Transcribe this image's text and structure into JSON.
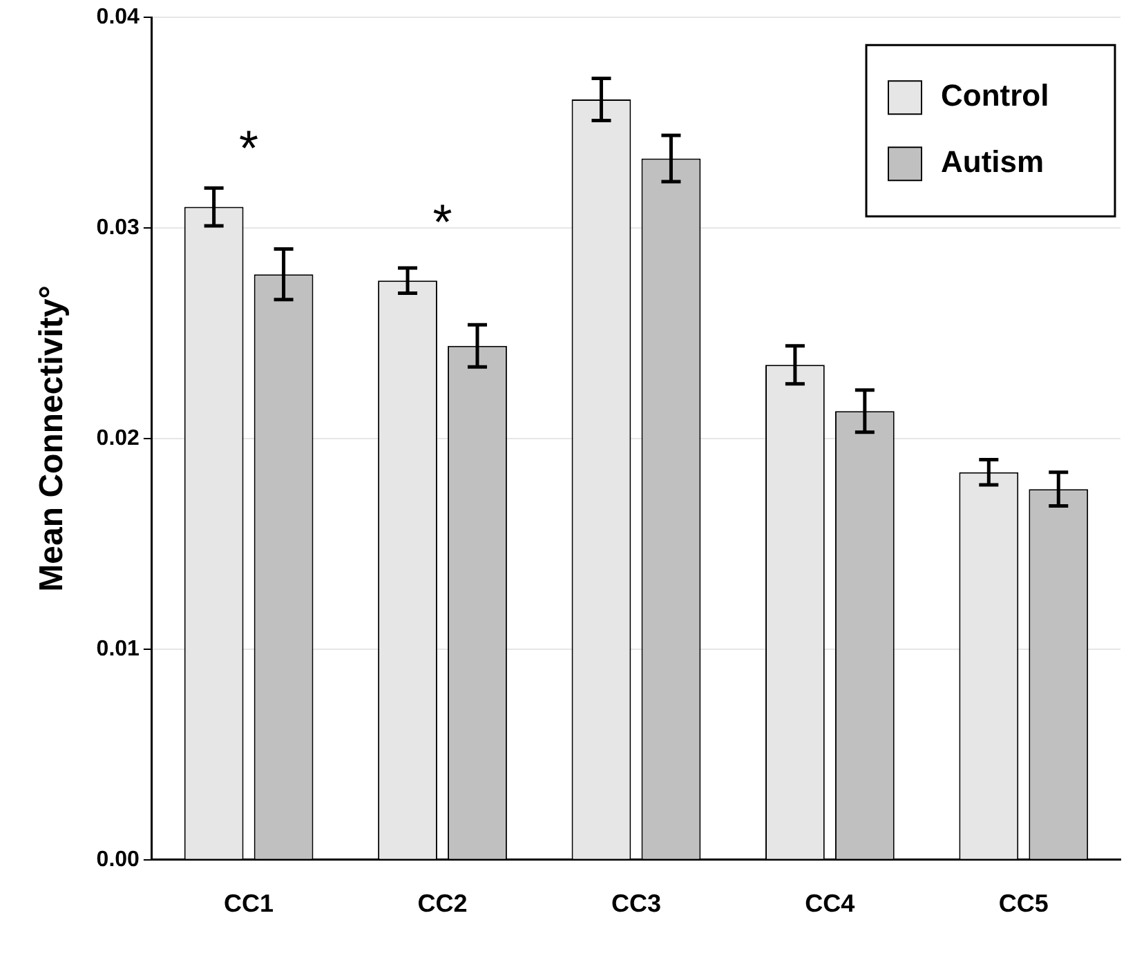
{
  "chart_data": {
    "type": "bar",
    "ylabel": "Mean Connectivity°",
    "categories": [
      "CC1",
      "CC2",
      "CC3",
      "CC4",
      "CC5"
    ],
    "series": [
      {
        "name": "Control",
        "color": "#e6e6e6",
        "values": [
          0.031,
          0.0275,
          0.0361,
          0.0235,
          0.0184
        ],
        "errors": [
          0.0009,
          0.0006,
          0.001,
          0.0009,
          0.0006
        ]
      },
      {
        "name": "Autism",
        "color": "#c0c0c0",
        "values": [
          0.0278,
          0.0244,
          0.0333,
          0.0213,
          0.0176
        ],
        "errors": [
          0.0012,
          0.001,
          0.0011,
          0.001,
          0.0008
        ]
      }
    ],
    "ylim": [
      0,
      0.04
    ],
    "yticks": [
      {
        "value": 0,
        "label": "0.00"
      },
      0.01,
      0.02,
      0.03,
      0.04
    ],
    "grid": "y",
    "legend": "top right",
    "annotations": [
      "*",
      "*"
    ]
  }
}
